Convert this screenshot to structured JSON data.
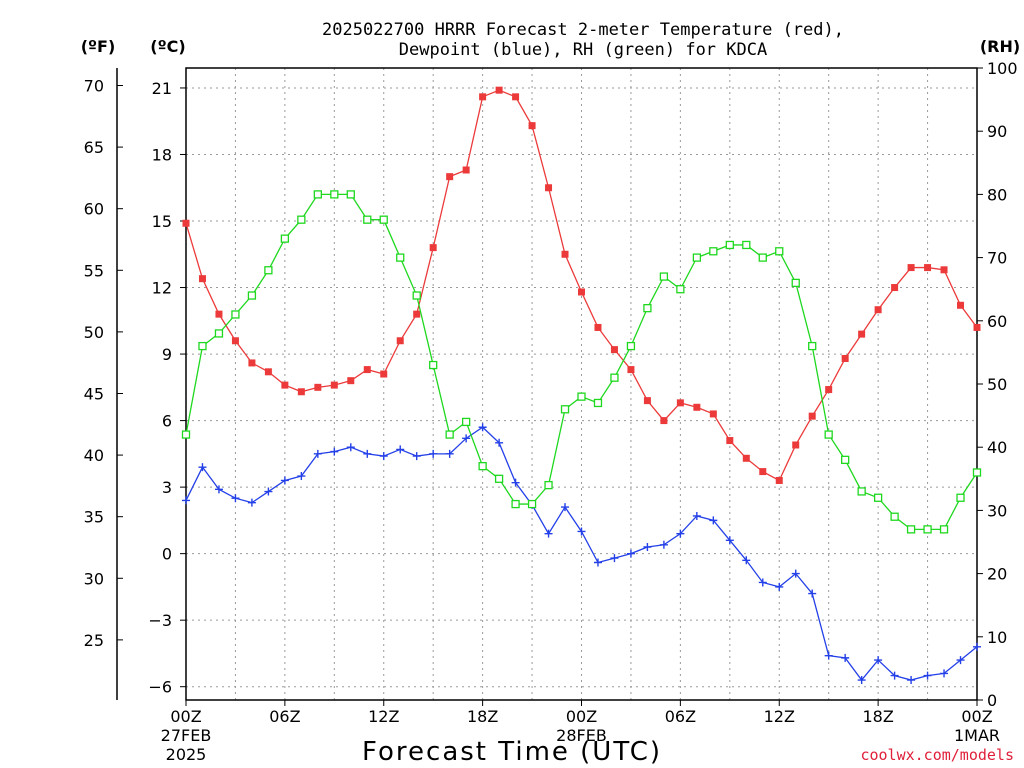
{
  "chart_data": {
    "type": "line",
    "title_line1": "2025022700 HRRR Forecast 2-meter Temperature (red),",
    "title_line2": "Dewpoint (blue), RH (green) for KDCA",
    "unit_f": "(ºF)",
    "unit_c": "(ºC)",
    "unit_rh": "(RH)",
    "xlabel": "Forecast Time (UTC)",
    "credit": "coolwx.com/models",
    "x_range_hours": [
      0,
      48
    ],
    "x_ticks": [
      {
        "hour": 0,
        "label": "00Z",
        "sub1": "27FEB",
        "sub2": "2025"
      },
      {
        "hour": 6,
        "label": "06Z"
      },
      {
        "hour": 12,
        "label": "12Z"
      },
      {
        "hour": 18,
        "label": "18Z"
      },
      {
        "hour": 24,
        "label": "00Z",
        "sub1": "28FEB"
      },
      {
        "hour": 30,
        "label": "06Z"
      },
      {
        "hour": 36,
        "label": "12Z"
      },
      {
        "hour": 42,
        "label": "18Z"
      },
      {
        "hour": 48,
        "label": "00Z",
        "sub1": "1MAR"
      }
    ],
    "y_left_c": {
      "range": [
        -6.6,
        21.9
      ],
      "ticks": [
        -6,
        -3,
        0,
        3,
        6,
        9,
        12,
        15,
        18,
        21
      ]
    },
    "y_left_f": {
      "ticks": [
        25,
        30,
        35,
        40,
        45,
        50,
        55,
        60,
        65,
        70
      ]
    },
    "y_right_rh": {
      "range": [
        0,
        100
      ],
      "ticks": [
        0,
        10,
        20,
        30,
        40,
        50,
        60,
        70,
        80,
        90,
        100
      ]
    },
    "grid": true,
    "series": [
      {
        "name": "Temperature",
        "color": "#ec3a3a",
        "marker": "filled-square",
        "axis": "celsius",
        "values": [
          14.9,
          12.4,
          10.8,
          9.6,
          8.6,
          8.2,
          7.6,
          7.3,
          7.5,
          7.6,
          7.8,
          8.3,
          8.1,
          9.6,
          10.8,
          13.8,
          17.0,
          17.3,
          20.6,
          20.9,
          20.6,
          19.3,
          16.5,
          13.5,
          11.8,
          10.2,
          9.2,
          8.3,
          6.9,
          6.0,
          6.8,
          6.6,
          6.3,
          5.1,
          4.3,
          3.7,
          3.3,
          4.9,
          6.2,
          7.4,
          8.8,
          9.9,
          11.0,
          12.0,
          12.9,
          12.9,
          12.8,
          11.2,
          10.2
        ]
      },
      {
        "name": "Dewpoint",
        "color": "#2440e8",
        "marker": "plus",
        "axis": "celsius",
        "values": [
          2.4,
          3.9,
          2.9,
          2.5,
          2.3,
          2.8,
          3.3,
          3.5,
          4.5,
          4.6,
          4.8,
          4.5,
          4.4,
          4.7,
          4.4,
          4.5,
          4.5,
          5.2,
          5.7,
          5.0,
          3.2,
          2.2,
          0.9,
          2.1,
          1.0,
          -0.4,
          -0.2,
          0.0,
          0.3,
          0.4,
          0.9,
          1.7,
          1.5,
          0.6,
          -0.3,
          -1.3,
          -1.5,
          -0.9,
          -1.8,
          -4.6,
          -4.7,
          -5.7,
          -4.8,
          -5.5,
          -5.7,
          -5.5,
          -5.4,
          -4.8,
          -4.2
        ]
      },
      {
        "name": "RH",
        "color": "#1ed81e",
        "marker": "open-square",
        "axis": "rh",
        "values": [
          42,
          56,
          58,
          61,
          64,
          68,
          73,
          76,
          80,
          80,
          80,
          76,
          76,
          70,
          64,
          53,
          42,
          44,
          37,
          35,
          31,
          31,
          34,
          46,
          48,
          47,
          51,
          56,
          62,
          67,
          65,
          70,
          71,
          72,
          72,
          70,
          71,
          66,
          56,
          42,
          38,
          33,
          32,
          29,
          27,
          27,
          27,
          32,
          36
        ]
      }
    ]
  }
}
